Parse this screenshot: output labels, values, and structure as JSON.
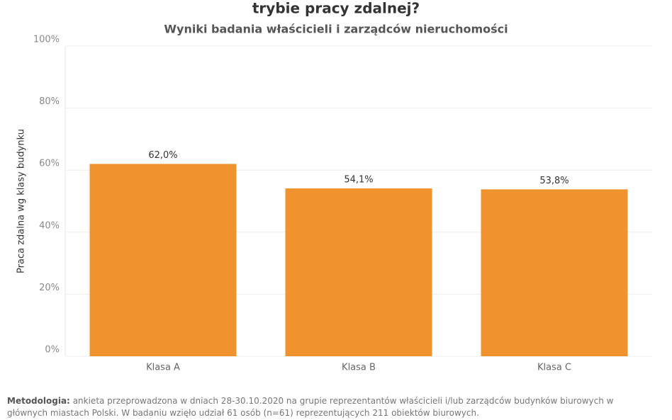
{
  "chart_data": {
    "type": "bar",
    "title": "trybie pracy zdalnej?",
    "subtitle": "Wyniki badania właścicieli i zarządców nieruchomości",
    "y_label": "Praca zdalna wg klasy budynku",
    "categories": [
      "Klasa A",
      "Klasa B",
      "Klasa C"
    ],
    "values": [
      62.0,
      54.1,
      53.8
    ],
    "value_labels": [
      "62,0%",
      "54,1%",
      "53,8%"
    ],
    "color": "#f0922e",
    "ylim": [
      0,
      100
    ],
    "yticks": [
      {
        "value": 0,
        "label": "0%"
      },
      {
        "value": 20,
        "label": "20%"
      },
      {
        "value": 40,
        "label": "40%"
      },
      {
        "value": 60,
        "label": "60%"
      },
      {
        "value": 80,
        "label": "80%"
      },
      {
        "value": 100,
        "label": "100%"
      }
    ],
    "grid": true
  },
  "note": {
    "label": "Metodologia:",
    "text": "ankieta przeprowadzona w dniach 28-30.10.2020 na grupie reprezentantów właścicieli i/lub zarządców budynków biurowych w głównych miastach Polski. W badaniu wzięło udział 61 osób (n=61) reprezentujących 211 obiektów biurowych."
  }
}
